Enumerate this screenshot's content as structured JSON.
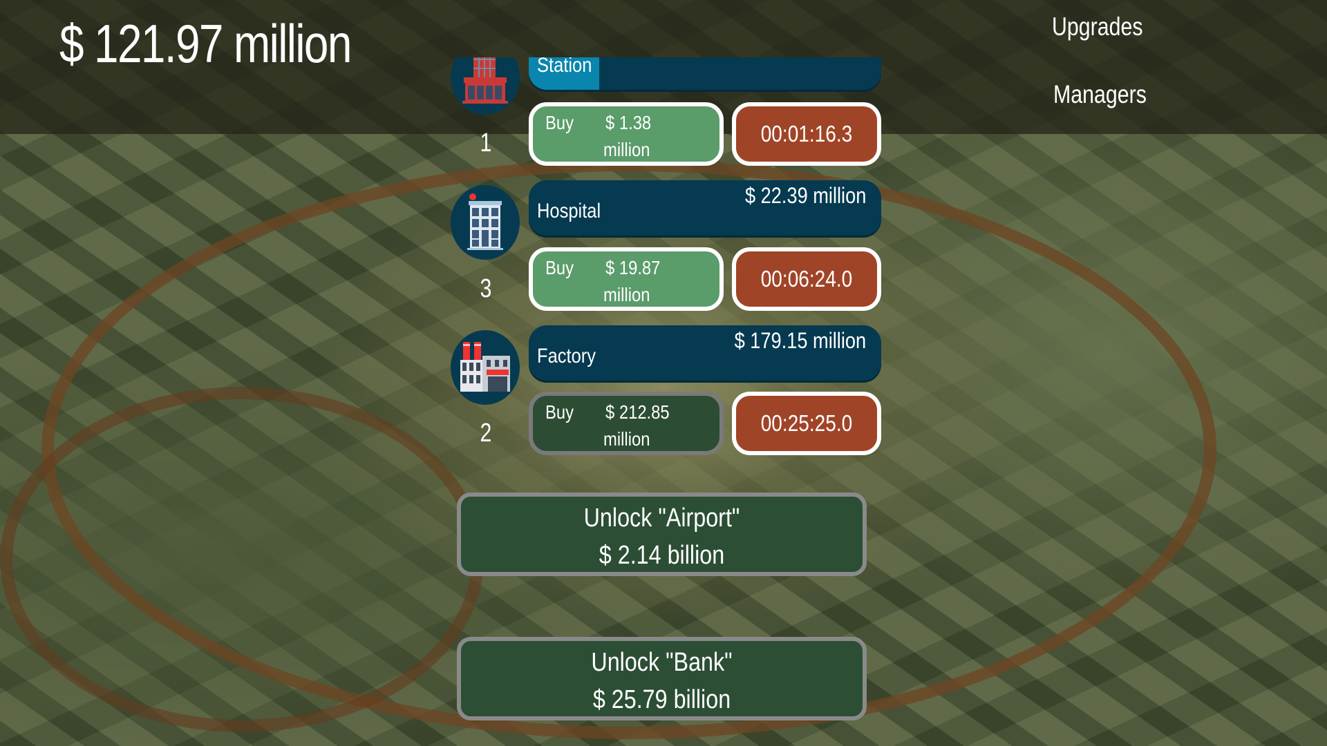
{
  "header": {
    "money": "$ 121.97 million",
    "upgrades_label": "Upgrades",
    "managers_label": "Managers"
  },
  "businesses": [
    {
      "name": "Station",
      "icon": "station-icon",
      "progress": 0.2,
      "buy_label": "Buy",
      "buy_price": "$ 1.38",
      "buy_unit": "million",
      "timer": "00:01:16.3",
      "count": "1",
      "affordable": true
    },
    {
      "name": "Hospital",
      "icon": "hospital-icon",
      "revenue": "$ 22.39 million",
      "progress": 0,
      "buy_label": "Buy",
      "buy_price": "$ 19.87",
      "buy_unit": "million",
      "timer": "00:06:24.0",
      "count": "3",
      "affordable": true
    },
    {
      "name": "Factory",
      "icon": "factory-icon",
      "revenue": "$ 179.15 million",
      "progress": 0,
      "buy_label": "Buy",
      "buy_price": "$ 212.85",
      "buy_unit": "million",
      "timer": "00:25:25.0",
      "count": "2",
      "affordable": false
    }
  ],
  "unlocks": [
    {
      "label": "Unlock \"Airport\"",
      "price": "$ 2.14 billion"
    },
    {
      "label": "Unlock \"Bank\"",
      "price": "$ 25.79 billion"
    }
  ],
  "colors": {
    "bar": "#053a50",
    "progress": "#0a85ad",
    "buy": "#5a9c6a",
    "buy_disabled": "#2c4d33",
    "timer": "#a04428",
    "unlock": "#2c4e35"
  }
}
